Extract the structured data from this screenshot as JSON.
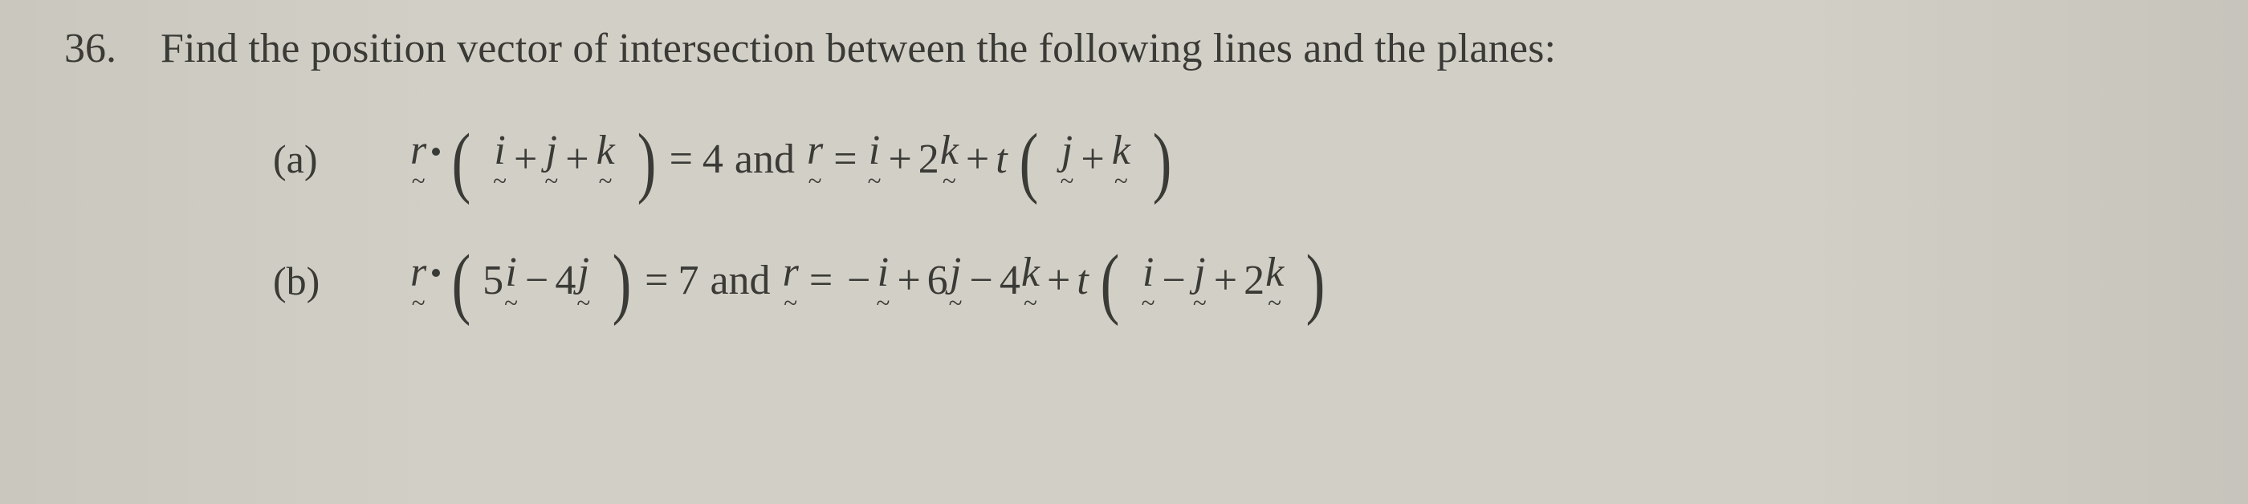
{
  "colors": {
    "background": "#d0cec5",
    "text": "#3a3a36"
  },
  "typography": {
    "family": "Times New Roman",
    "question_fontsize_pt": 39,
    "math_fontsize_pt": 39
  },
  "question": {
    "number": "36.",
    "text": "Find the position vector of intersection between the following lines and the planes:"
  },
  "parts": [
    {
      "label": "(a)",
      "plane": {
        "lhs_vec": "r",
        "normal_terms": [
          {
            "sign": "",
            "coef": "",
            "basis": "i"
          },
          {
            "sign": "+",
            "coef": "",
            "basis": "j"
          },
          {
            "sign": "+",
            "coef": "",
            "basis": "k"
          }
        ],
        "rhs": "4"
      },
      "connector": "and",
      "line": {
        "lhs_vec": "r",
        "point_terms": [
          {
            "sign": "",
            "coef": "",
            "basis": "i"
          },
          {
            "sign": "+",
            "coef": "2",
            "basis": "k"
          }
        ],
        "param": "t",
        "dir_terms": [
          {
            "sign": "",
            "coef": "",
            "basis": "j"
          },
          {
            "sign": "+",
            "coef": "",
            "basis": "k"
          }
        ]
      }
    },
    {
      "label": "(b)",
      "plane": {
        "lhs_vec": "r",
        "normal_terms": [
          {
            "sign": "",
            "coef": "5",
            "basis": "i"
          },
          {
            "sign": "−",
            "coef": "4",
            "basis": "j"
          }
        ],
        "rhs": "7"
      },
      "connector": "and",
      "line": {
        "lhs_vec": "r",
        "point_terms": [
          {
            "sign": "−",
            "coef": "",
            "basis": "i",
            "leading_neg": true
          },
          {
            "sign": "+",
            "coef": "6",
            "basis": "j"
          },
          {
            "sign": "−",
            "coef": "4",
            "basis": "k"
          }
        ],
        "param": "t",
        "dir_terms": [
          {
            "sign": "",
            "coef": "",
            "basis": "i"
          },
          {
            "sign": "−",
            "coef": "",
            "basis": "j"
          },
          {
            "sign": "+",
            "coef": "2",
            "basis": "k"
          }
        ]
      }
    }
  ]
}
